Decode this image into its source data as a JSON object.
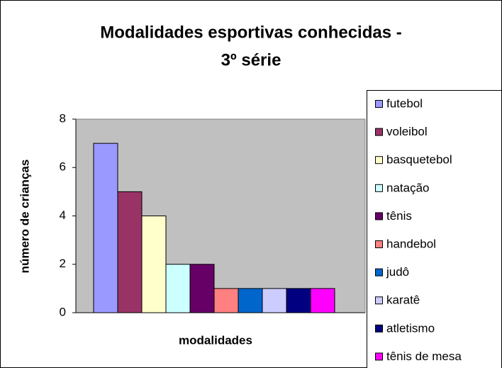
{
  "chart_data": {
    "type": "bar",
    "title": [
      "Modalidades esportivas conhecidas -",
      "3º série"
    ],
    "x_label": "modalidades",
    "y_label": "número de crianças",
    "ylim": [
      0,
      8
    ],
    "yticks": [
      0,
      2,
      4,
      6,
      8
    ],
    "grid": false,
    "legend": "right",
    "series": [
      {
        "name": "futebol",
        "color": "#9999FF",
        "values": [
          7
        ]
      },
      {
        "name": "voleibol",
        "color": "#993366",
        "values": [
          5
        ]
      },
      {
        "name": "basquetebol",
        "color": "#FFFFCC",
        "values": [
          4
        ]
      },
      {
        "name": "natação",
        "color": "#CCFFFF",
        "values": [
          2
        ]
      },
      {
        "name": "tênis",
        "color": "#660066",
        "values": [
          2
        ]
      },
      {
        "name": "handebol",
        "color": "#FF8080",
        "values": [
          1
        ]
      },
      {
        "name": "judô",
        "color": "#0066CC",
        "values": [
          1
        ]
      },
      {
        "name": "karatê",
        "color": "#CCCCFF",
        "values": [
          1
        ]
      },
      {
        "name": "atletismo",
        "color": "#000080",
        "values": [
          1
        ]
      },
      {
        "name": "tênis de mesa",
        "color": "#FF00FF",
        "values": [
          1
        ]
      }
    ]
  }
}
